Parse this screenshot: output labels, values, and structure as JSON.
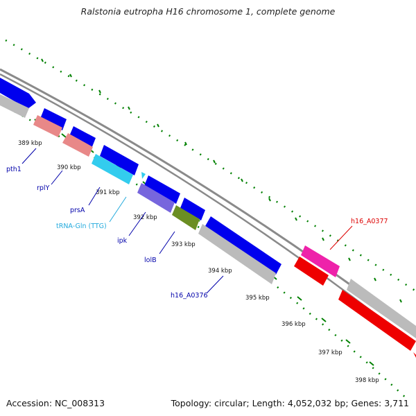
{
  "title": "Ralstonia eutropha H16 chromosome 1, complete genome",
  "accession_label": "Accession: NC_008313",
  "summary_label": "Topology: circular; Length: 4,052,032 bp; Genes: 3,711",
  "colors": {
    "backbone": "#888888",
    "cds_forward": "#0000ee",
    "cds_reverse": "#bbbbbb",
    "trna": "#33ccee",
    "rrna_like": "#e88888",
    "pink": "#ee22aa",
    "red": "#ee0000",
    "olive": "#6b8e23",
    "violet": "#7766dd",
    "tick": "#008000",
    "gene_label": "#0000aa",
    "trna_label": "#22aadd",
    "highlight_label": "#dd0000"
  },
  "kbp_ticks": [
    "389 kbp",
    "390 kbp",
    "391 kbp",
    "392 kbp",
    "393 kbp",
    "394 kbp",
    "395 kbp",
    "396 kbp",
    "397 kbp",
    "398 kbp"
  ],
  "gene_labels": [
    {
      "text": "pth1",
      "color": "gene_label"
    },
    {
      "text": "rplY",
      "color": "gene_label"
    },
    {
      "text": "prsA",
      "color": "gene_label"
    },
    {
      "text": "tRNA-Gln (TTG)",
      "color": "trna_label"
    },
    {
      "text": "ipk",
      "color": "gene_label"
    },
    {
      "text": "lolB",
      "color": "gene_label"
    },
    {
      "text": "h16_A0376",
      "color": "gene_label"
    },
    {
      "text": "h16_A0377",
      "color": "highlight_label"
    }
  ]
}
